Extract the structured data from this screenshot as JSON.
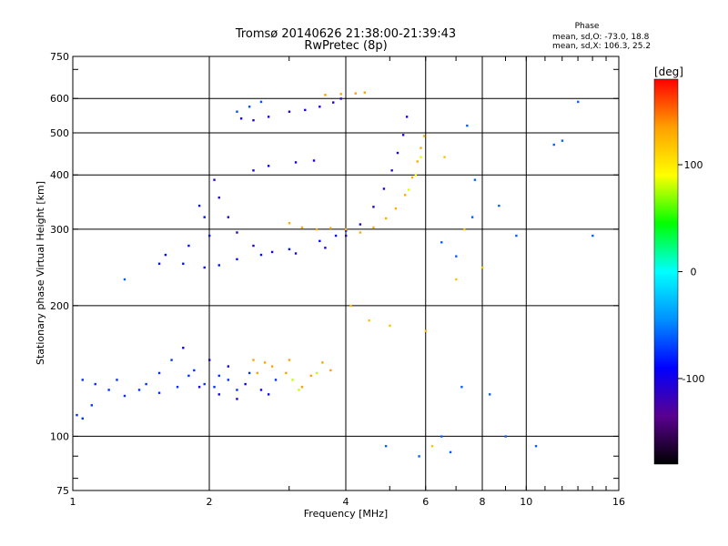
{
  "chart_data": {
    "type": "scatter",
    "title": "Tromsø 20140626 21:38:00-21:39:43",
    "subtitle": "RwPretec (8p)",
    "xlabel": "Frequency [MHz]",
    "ylabel": "Stationary phase Virtual Height [km]",
    "x_scale": "log",
    "y_scale": "log",
    "xlim": [
      1,
      16
    ],
    "ylim": [
      75,
      750
    ],
    "x_ticks": [
      {
        "value": 1,
        "label": "1"
      },
      {
        "value": 2,
        "label": "2"
      },
      {
        "value": 4,
        "label": "4"
      },
      {
        "value": 6,
        "label": "6"
      },
      {
        "value": 8,
        "label": "8"
      },
      {
        "value": 10,
        "label": "10"
      },
      {
        "value": 16,
        "label": "16"
      }
    ],
    "x_gridlines": [
      2,
      4,
      6,
      8,
      10
    ],
    "y_ticks": [
      {
        "value": 75,
        "label": "75"
      },
      {
        "value": 100,
        "label": "100"
      },
      {
        "value": 200,
        "label": "200"
      },
      {
        "value": 300,
        "label": "300"
      },
      {
        "value": 400,
        "label": "400"
      },
      {
        "value": 500,
        "label": "500"
      },
      {
        "value": 600,
        "label": "600"
      },
      {
        "value": 750,
        "label": "750"
      }
    ],
    "y_gridlines": [
      100,
      200,
      300,
      400,
      500,
      600
    ],
    "grid": true,
    "phase_info": {
      "title": "Phase",
      "line_o": "mean, sd,O: -73.0, 18.8",
      "line_x": "mean, sd,X: 106.3, 25.2"
    },
    "colorbar": {
      "label": "[deg]",
      "range": [
        -180,
        180
      ],
      "ticks": [
        {
          "value": 100,
          "label": "100"
        },
        {
          "value": 0,
          "label": "0"
        },
        {
          "value": -100,
          "label": "-100"
        }
      ],
      "stops": [
        "#000000",
        "#5a0090",
        "#0000ff",
        "#0090ff",
        "#00ffff",
        "#00ff00",
        "#ffff00",
        "#ffa000",
        "#ff0000"
      ]
    },
    "series": [
      {
        "points": [
          [
            1.02,
            112
          ],
          [
            1.05,
            110
          ],
          [
            1.1,
            118
          ],
          [
            1.2,
            128
          ],
          [
            1.3,
            124
          ],
          [
            1.45,
            132
          ],
          [
            1.55,
            140
          ],
          [
            1.65,
            150
          ],
          [
            1.8,
            138
          ],
          [
            1.95,
            132
          ],
          [
            2.05,
            130
          ],
          [
            2.2,
            135
          ],
          [
            2.45,
            140
          ],
          [
            2.8,
            135
          ],
          [
            1.05,
            135
          ],
          [
            1.12,
            132
          ],
          [
            1.25,
            135
          ],
          [
            1.4,
            128
          ],
          [
            1.55,
            126
          ],
          [
            1.7,
            130
          ],
          [
            1.85,
            142
          ],
          [
            2.1,
            138
          ],
          [
            2.3,
            128
          ]
        ],
        "phase": -75
      },
      {
        "points": [
          [
            1.75,
            160
          ],
          [
            2.0,
            150
          ],
          [
            2.1,
            125
          ],
          [
            2.3,
            122
          ],
          [
            2.6,
            128
          ],
          [
            2.2,
            145
          ],
          [
            1.9,
            130
          ],
          [
            2.4,
            132
          ],
          [
            2.7,
            125
          ]
        ],
        "phase": -100
      },
      {
        "points": [
          [
            2.5,
            150
          ],
          [
            2.65,
            148
          ],
          [
            2.95,
            140
          ],
          [
            3.2,
            130
          ],
          [
            3.35,
            138
          ],
          [
            3.55,
            148
          ],
          [
            3.7,
            142
          ],
          [
            2.55,
            140
          ],
          [
            2.75,
            145
          ],
          [
            3.0,
            150
          ]
        ],
        "phase": 135
      },
      {
        "points": [
          [
            3.05,
            135
          ],
          [
            3.15,
            128
          ],
          [
            3.45,
            140
          ]
        ],
        "phase": 80
      },
      {
        "points": [
          [
            1.55,
            250
          ],
          [
            1.75,
            250
          ],
          [
            1.95,
            245
          ],
          [
            2.1,
            248
          ],
          [
            2.3,
            256
          ],
          [
            2.6,
            262
          ],
          [
            3.0,
            270
          ],
          [
            3.5,
            282
          ],
          [
            3.8,
            290
          ],
          [
            4.0,
            298
          ],
          [
            1.6,
            262
          ],
          [
            1.8,
            275
          ],
          [
            2.0,
            290
          ],
          [
            1.95,
            320
          ],
          [
            1.9,
            340
          ]
        ],
        "phase": -85
      },
      {
        "points": [
          [
            2.05,
            390
          ],
          [
            2.1,
            355
          ],
          [
            2.2,
            320
          ],
          [
            2.3,
            295
          ],
          [
            2.5,
            275
          ],
          [
            2.75,
            266
          ],
          [
            3.1,
            264
          ],
          [
            3.6,
            272
          ],
          [
            4.0,
            290
          ],
          [
            4.3,
            308
          ],
          [
            4.6,
            338
          ],
          [
            4.85,
            372
          ],
          [
            5.05,
            410
          ],
          [
            5.2,
            450
          ],
          [
            5.35,
            495
          ],
          [
            5.45,
            545
          ]
        ],
        "phase": -110
      },
      {
        "points": [
          [
            3.0,
            310
          ],
          [
            3.2,
            303
          ],
          [
            3.45,
            300
          ],
          [
            3.7,
            302
          ],
          [
            4.0,
            300
          ],
          [
            4.3,
            295
          ],
          [
            4.6,
            303
          ],
          [
            4.9,
            318
          ],
          [
            5.15,
            335
          ],
          [
            5.4,
            360
          ],
          [
            5.6,
            395
          ],
          [
            5.75,
            430
          ],
          [
            5.85,
            462
          ],
          [
            5.95,
            492
          ]
        ],
        "phase": 130
      },
      {
        "points": [
          [
            5.5,
            370
          ],
          [
            5.7,
            400
          ],
          [
            5.85,
            440
          ]
        ],
        "phase": 85
      },
      {
        "points": [
          [
            2.5,
            535
          ],
          [
            2.7,
            545
          ],
          [
            3.0,
            560
          ],
          [
            3.25,
            565
          ],
          [
            3.5,
            575
          ],
          [
            3.75,
            588
          ],
          [
            3.9,
            600
          ],
          [
            2.35,
            540
          ]
        ],
        "phase": -105
      },
      {
        "points": [
          [
            2.3,
            560
          ],
          [
            2.45,
            575
          ],
          [
            2.6,
            590
          ]
        ],
        "phase": -65
      },
      {
        "points": [
          [
            3.6,
            612
          ],
          [
            3.9,
            615
          ],
          [
            4.2,
            617
          ],
          [
            4.4,
            620
          ]
        ],
        "phase": 135
      },
      {
        "points": [
          [
            2.5,
            410
          ],
          [
            2.7,
            420
          ],
          [
            3.1,
            428
          ],
          [
            3.4,
            432
          ]
        ],
        "phase": -100
      },
      {
        "points": [
          [
            4.9,
            95
          ],
          [
            5.8,
            90
          ],
          [
            6.5,
            100
          ],
          [
            6.8,
            92
          ],
          [
            7.2,
            130
          ],
          [
            7.6,
            320
          ],
          [
            8.3,
            125
          ],
          [
            9.0,
            100
          ],
          [
            10.5,
            95
          ],
          [
            11.5,
            470
          ],
          [
            12.0,
            480
          ],
          [
            13.0,
            590
          ],
          [
            14.0,
            290
          ],
          [
            7.4,
            520
          ],
          [
            7.7,
            390
          ],
          [
            8.7,
            340
          ],
          [
            9.5,
            290
          ],
          [
            1.3,
            230
          ],
          [
            6.5,
            280
          ],
          [
            7.0,
            260
          ]
        ],
        "phase": -60
      },
      {
        "points": [
          [
            4.5,
            185
          ],
          [
            5.0,
            180
          ],
          [
            6.0,
            175
          ],
          [
            6.2,
            95
          ],
          [
            7.0,
            230
          ],
          [
            7.3,
            300
          ],
          [
            8.0,
            245
          ],
          [
            4.1,
            200
          ],
          [
            6.6,
            440
          ]
        ],
        "phase": 120
      }
    ]
  }
}
